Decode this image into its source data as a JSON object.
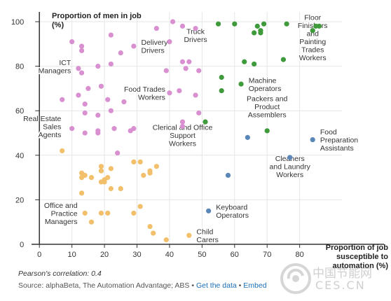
{
  "chart_data": {
    "type": "scatter",
    "title": "",
    "ylabel": "Proportion of men in job (%)",
    "xlabel": "Proportion of job susceptible to automation (%)",
    "xlim": [
      -5,
      93
    ],
    "ylim": [
      0,
      100
    ],
    "x_ticks": [
      "0",
      "10",
      "20",
      "30",
      "40",
      "50",
      "60",
      "70",
      "80"
    ],
    "y_ticks": [
      "0",
      "20",
      "40",
      "60",
      "80",
      "100"
    ],
    "grid": true,
    "legend": "none",
    "colors": {
      "pink": "#d890d0",
      "orange": "#f2bf6a",
      "green": "#3e9a3a",
      "blue": "#5a86b8",
      "grid": "#e6e6e6",
      "axis": "#333333"
    },
    "series": [
      {
        "color_key": "pink",
        "points": [
          [
            10,
            91
          ],
          [
            13,
            89
          ],
          [
            13,
            87
          ],
          [
            22,
            94
          ],
          [
            25,
            86
          ],
          [
            29,
            89
          ],
          [
            36,
            97
          ],
          [
            41,
            100
          ],
          [
            40,
            91
          ],
          [
            44,
            98
          ],
          [
            48,
            97
          ],
          [
            12,
            79
          ],
          [
            13,
            77
          ],
          [
            18,
            80
          ],
          [
            22,
            81
          ],
          [
            39,
            78
          ],
          [
            44,
            82
          ],
          [
            45,
            79
          ],
          [
            46,
            82
          ],
          [
            49,
            78
          ],
          [
            15,
            70
          ],
          [
            12,
            67
          ],
          [
            19,
            71
          ],
          [
            14,
            63
          ],
          [
            21,
            65
          ],
          [
            26,
            64
          ],
          [
            40,
            68
          ],
          [
            43,
            69
          ],
          [
            48,
            67
          ],
          [
            7,
            65
          ],
          [
            14,
            59
          ],
          [
            18,
            58
          ],
          [
            22,
            60
          ],
          [
            49,
            59
          ],
          [
            10,
            52
          ],
          [
            14,
            50
          ],
          [
            18,
            51
          ],
          [
            18,
            50
          ],
          [
            23,
            52
          ],
          [
            28,
            51
          ],
          [
            29,
            52
          ],
          [
            44,
            55
          ],
          [
            44,
            53
          ],
          [
            24,
            41
          ]
        ]
      },
      {
        "color_key": "orange",
        "points": [
          [
            7,
            42
          ],
          [
            13,
            32
          ],
          [
            14,
            31
          ],
          [
            13,
            30
          ],
          [
            16,
            30
          ],
          [
            19,
            35
          ],
          [
            19,
            33
          ],
          [
            20,
            29
          ],
          [
            21,
            30
          ],
          [
            22,
            34
          ],
          [
            19,
            28
          ],
          [
            20,
            28
          ],
          [
            22,
            25
          ],
          [
            25,
            25
          ],
          [
            13,
            23
          ],
          [
            29,
            37
          ],
          [
            31,
            37
          ],
          [
            32,
            31
          ],
          [
            34,
            32
          ],
          [
            36,
            35
          ],
          [
            34,
            33
          ],
          [
            14,
            14
          ],
          [
            16,
            10
          ],
          [
            19,
            14
          ],
          [
            21,
            14
          ],
          [
            29,
            14
          ],
          [
            31,
            17
          ],
          [
            34,
            8
          ],
          [
            35,
            5
          ],
          [
            39,
            2
          ],
          [
            46,
            4
          ]
        ]
      },
      {
        "color_key": "green",
        "points": [
          [
            55,
            99
          ],
          [
            60,
            99
          ],
          [
            66,
            95
          ],
          [
            67,
            98
          ],
          [
            68,
            96
          ],
          [
            68,
            95
          ],
          [
            69,
            99
          ],
          [
            76,
            99
          ],
          [
            84,
            96
          ],
          [
            85,
            98
          ],
          [
            86,
            98
          ],
          [
            75,
            83
          ],
          [
            63,
            82
          ],
          [
            66,
            81
          ],
          [
            56,
            75
          ],
          [
            56,
            69
          ],
          [
            62,
            72
          ],
          [
            51,
            55
          ],
          [
            70,
            51
          ]
        ]
      },
      {
        "color_key": "blue",
        "points": [
          [
            64,
            48
          ],
          [
            84,
            47
          ],
          [
            77,
            39
          ],
          [
            58,
            31
          ],
          [
            52,
            15
          ]
        ]
      }
    ],
    "annotations": [
      {
        "text": "Truck\nDrivers",
        "x": 48,
        "y": 94,
        "align": "middle"
      },
      {
        "text": "Delivery\nDrivers",
        "x": 30,
        "y": 89,
        "align": "start"
      },
      {
        "text": "ICT\nManagers",
        "x": 11,
        "y": 80,
        "align": "end"
      },
      {
        "text": "Food Trades\nWorkers",
        "x": 40,
        "y": 68,
        "align": "end"
      },
      {
        "text": "Real Estate\nSales\nAgents",
        "x": 8,
        "y": 53,
        "align": "end"
      },
      {
        "text": "Clerical and Office\nSupport\nWorkers",
        "x": 44,
        "y": 49,
        "align": "middle"
      },
      {
        "text": "Office and\nPractice\nManagers",
        "x": 13,
        "y": 14,
        "align": "end"
      },
      {
        "text": "Child\nCarers",
        "x": 47,
        "y": 4,
        "align": "start"
      },
      {
        "text": "Keyboard\nOperators",
        "x": 53,
        "y": 15,
        "align": "start"
      },
      {
        "text": "Cleaners\nand Laundry\nWorkers",
        "x": 77,
        "y": 35,
        "align": "middle"
      },
      {
        "text": "Food\nPreparation\nAssistants",
        "x": 85,
        "y": 47,
        "align": "start"
      },
      {
        "text": "Packers and\nProduct\nAssemblers",
        "x": 70,
        "y": 62,
        "align": "middle"
      },
      {
        "text": "Machine\nOperators",
        "x": 63,
        "y": 72,
        "align": "start"
      },
      {
        "text": "Floor\nFinishers\nand\nPainting\nTrades\nWorkers",
        "x": 84,
        "y": 93,
        "align": "middle"
      }
    ]
  },
  "footer": {
    "correlation": "Pearson's correlation: 0.4",
    "source": "Source: alphaBeta, The Automation Advantage; ABS",
    "get_data": "Get the data",
    "embed": "Embed",
    "separator": "•"
  },
  "watermark": {
    "cn_text": "中国节能网",
    "latin_text": "CES.CN"
  }
}
